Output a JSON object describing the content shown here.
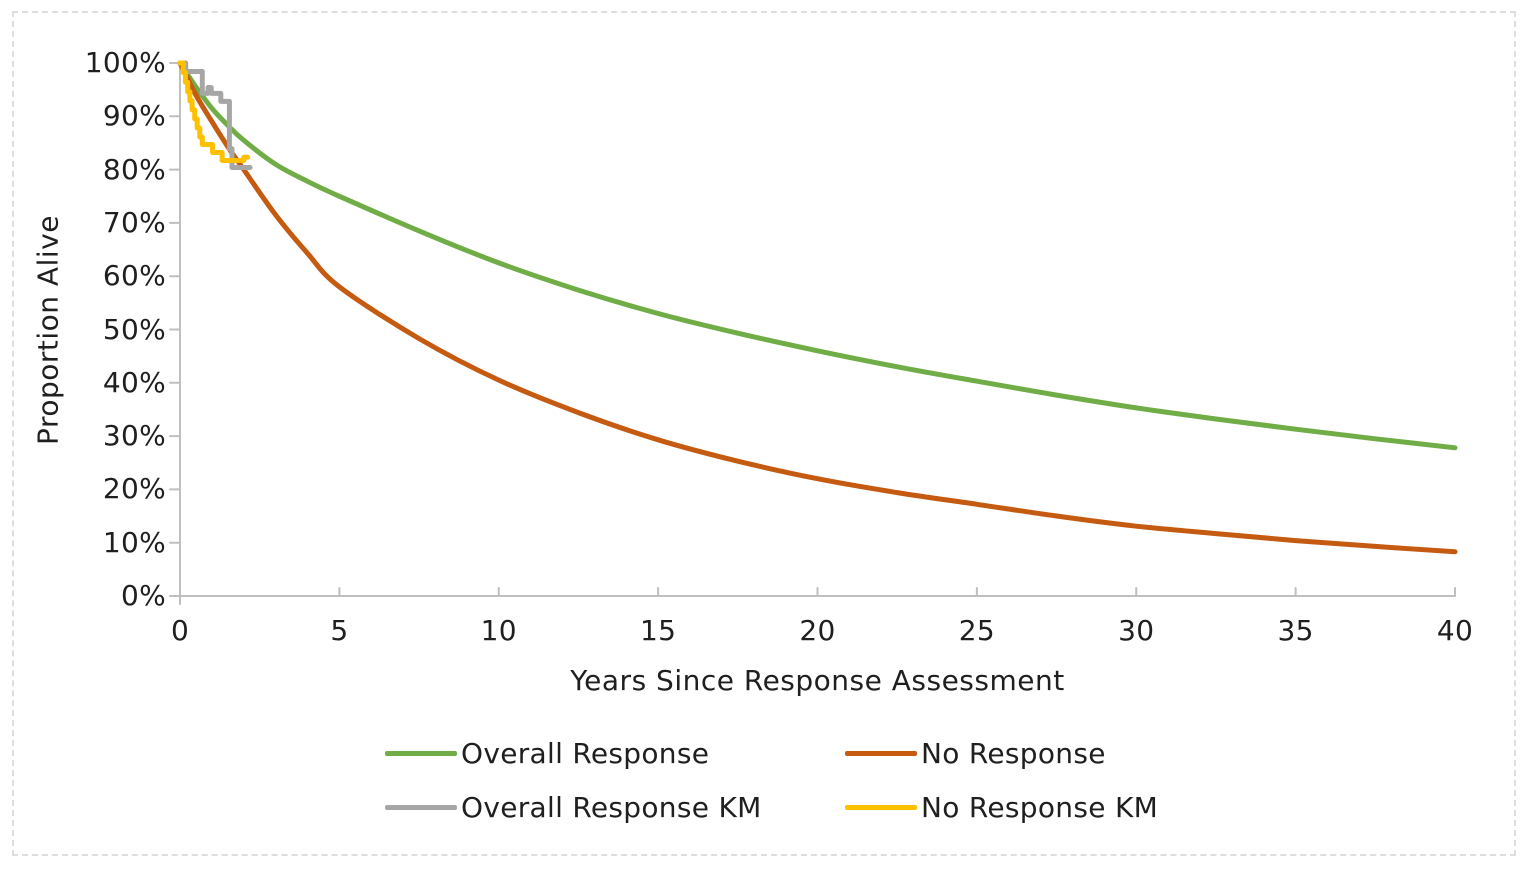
{
  "chart_data": {
    "type": "line",
    "title": "",
    "xlabel": "Years Since Response Assessment",
    "ylabel": "Proportion Alive",
    "xlim": [
      0,
      40
    ],
    "ylim": [
      0,
      100
    ],
    "grid": false,
    "legend_position": "bottom",
    "axis_color": "#bfbfbf",
    "text_color": "#1f1f1f",
    "x_ticks": [
      {
        "v": 0,
        "label": "0"
      },
      {
        "v": 5,
        "label": "5"
      },
      {
        "v": 10,
        "label": "10"
      },
      {
        "v": 15,
        "label": "15"
      },
      {
        "v": 20,
        "label": "20"
      },
      {
        "v": 25,
        "label": "25"
      },
      {
        "v": 30,
        "label": "30"
      },
      {
        "v": 35,
        "label": "35"
      },
      {
        "v": 40,
        "label": "40"
      }
    ],
    "y_ticks": [
      {
        "v": 0,
        "label": "0%"
      },
      {
        "v": 10,
        "label": "10%"
      },
      {
        "v": 20,
        "label": "20%"
      },
      {
        "v": 30,
        "label": "30%"
      },
      {
        "v": 40,
        "label": "40%"
      },
      {
        "v": 50,
        "label": "50%"
      },
      {
        "v": 60,
        "label": "60%"
      },
      {
        "v": 70,
        "label": "70%"
      },
      {
        "v": 80,
        "label": "80%"
      },
      {
        "v": 90,
        "label": "90%"
      },
      {
        "v": 100,
        "label": "100%"
      }
    ],
    "series": [
      {
        "name": "Overall Response",
        "color": "#70AD47",
        "style": "smooth",
        "points": [
          [
            0,
            100
          ],
          [
            0.5,
            95.5
          ],
          [
            1,
            91.5
          ],
          [
            1.5,
            88.3
          ],
          [
            2,
            85.5
          ],
          [
            3,
            81
          ],
          [
            4,
            77.8
          ],
          [
            5,
            75
          ],
          [
            7.5,
            68.5
          ],
          [
            10,
            62.5
          ],
          [
            12.5,
            57.4
          ],
          [
            15,
            53
          ],
          [
            17.5,
            49.3
          ],
          [
            20,
            46
          ],
          [
            22.5,
            43
          ],
          [
            25,
            40.3
          ],
          [
            27.5,
            37.7
          ],
          [
            30,
            35.3
          ],
          [
            32.5,
            33.2
          ],
          [
            35,
            31.3
          ],
          [
            37.5,
            29.5
          ],
          [
            40,
            27.8
          ]
        ]
      },
      {
        "name": "No Response",
        "color": "#C55A11",
        "style": "smooth",
        "points": [
          [
            0,
            100
          ],
          [
            0.5,
            94
          ],
          [
            1,
            89
          ],
          [
            1.5,
            84.3
          ],
          [
            2,
            80
          ],
          [
            3,
            71.5
          ],
          [
            4,
            64.3
          ],
          [
            5,
            58
          ],
          [
            7.5,
            48.3
          ],
          [
            10,
            40.5
          ],
          [
            12.5,
            34.4
          ],
          [
            15,
            29.3
          ],
          [
            17.5,
            25.3
          ],
          [
            20,
            22
          ],
          [
            22.5,
            19.4
          ],
          [
            25,
            17.2
          ],
          [
            27.5,
            15
          ],
          [
            30,
            13.1
          ],
          [
            32.5,
            11.7
          ],
          [
            35,
            10.4
          ],
          [
            37.5,
            9.3
          ],
          [
            40,
            8.3
          ]
        ]
      },
      {
        "name": "Overall Response KM",
        "color": "#A6A6A6",
        "style": "step",
        "points": [
          [
            0,
            100
          ],
          [
            0.18,
            100
          ],
          [
            0.18,
            98.4
          ],
          [
            0.7,
            98.4
          ],
          [
            0.7,
            94.3
          ],
          [
            0.88,
            94.3
          ],
          [
            0.88,
            95.4
          ],
          [
            0.98,
            95.4
          ],
          [
            0.98,
            94.3
          ],
          [
            1.28,
            94.3
          ],
          [
            1.28,
            92.8
          ],
          [
            1.55,
            92.8
          ],
          [
            1.55,
            83.9
          ],
          [
            1.63,
            83.9
          ],
          [
            1.63,
            80.4
          ],
          [
            2.2,
            80.4
          ]
        ]
      },
      {
        "name": "No Response KM",
        "color": "#FFC000",
        "style": "step",
        "points": [
          [
            0,
            100
          ],
          [
            0.1,
            100
          ],
          [
            0.1,
            98.2
          ],
          [
            0.17,
            98.2
          ],
          [
            0.17,
            96.4
          ],
          [
            0.24,
            96.4
          ],
          [
            0.24,
            94.6
          ],
          [
            0.31,
            94.6
          ],
          [
            0.31,
            92.9
          ],
          [
            0.38,
            92.9
          ],
          [
            0.38,
            91.2
          ],
          [
            0.46,
            91.2
          ],
          [
            0.46,
            89.5
          ],
          [
            0.54,
            89.5
          ],
          [
            0.54,
            87.8
          ],
          [
            0.62,
            87.8
          ],
          [
            0.62,
            86.1
          ],
          [
            0.7,
            86.1
          ],
          [
            0.7,
            84.7
          ],
          [
            1.02,
            84.7
          ],
          [
            1.02,
            83.2
          ],
          [
            1.32,
            83.2
          ],
          [
            1.32,
            81.7
          ],
          [
            2.0,
            81.7
          ],
          [
            2.0,
            82.3
          ],
          [
            2.12,
            82.3
          ]
        ]
      }
    ],
    "legend": [
      {
        "label": "Overall Response",
        "color": "#70AD47",
        "row": 0,
        "col": 0
      },
      {
        "label": "No Response",
        "color": "#C55A11",
        "row": 0,
        "col": 1
      },
      {
        "label": "Overall Response KM",
        "color": "#A6A6A6",
        "row": 1,
        "col": 0
      },
      {
        "label": "No Response KM",
        "color": "#FFC000",
        "row": 1,
        "col": 1
      }
    ]
  }
}
